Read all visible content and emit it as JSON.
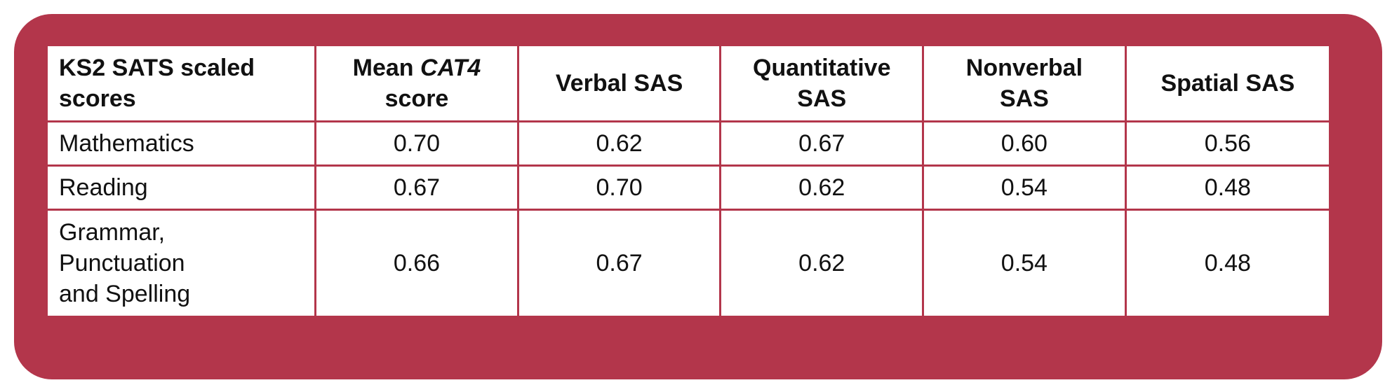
{
  "table": {
    "headers": {
      "col1": [
        "KS2 SATS scaled",
        "scores"
      ],
      "col2": {
        "line1_plain": "Mean ",
        "line1_italic": "CAT4",
        "line2": "score"
      },
      "col3": "Verbal SAS",
      "col4": [
        "Quantitative",
        "SAS"
      ],
      "col5": [
        "Nonverbal",
        "SAS"
      ],
      "col6": "Spatial SAS"
    },
    "rows": [
      {
        "label": [
          "Mathematics"
        ],
        "values": [
          "0.70",
          "0.62",
          "0.67",
          "0.60",
          "0.56"
        ]
      },
      {
        "label": [
          "Reading"
        ],
        "values": [
          "0.67",
          "0.70",
          "0.62",
          "0.54",
          "0.48"
        ]
      },
      {
        "label": [
          "Grammar,",
          "Punctuation",
          "and Spelling"
        ],
        "values": [
          "0.66",
          "0.67",
          "0.62",
          "0.54",
          "0.48"
        ]
      }
    ]
  },
  "colors": {
    "panel": "#b3364b",
    "cell_background": "#ffffff",
    "text": "#111111"
  }
}
